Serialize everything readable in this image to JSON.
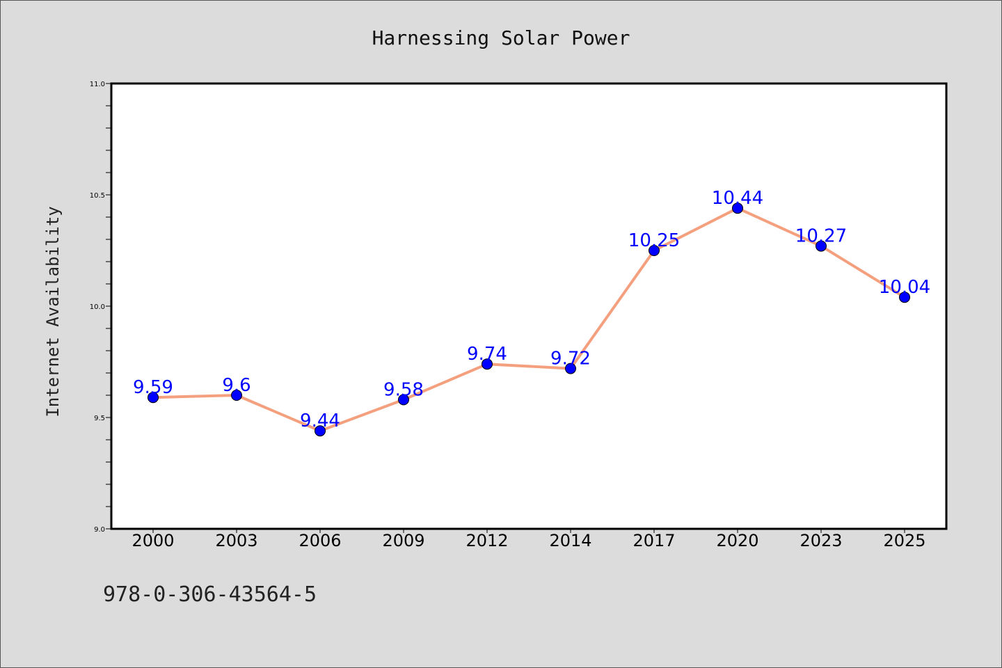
{
  "chart_data": {
    "type": "line",
    "title": "Harnessing Solar Power",
    "xlabel": "",
    "ylabel": "Internet Availability",
    "categories": [
      "2000",
      "2003",
      "2006",
      "2009",
      "2012",
      "2014",
      "2017",
      "2020",
      "2023",
      "2025"
    ],
    "series": [
      {
        "values": [
          9.59,
          9.6,
          9.44,
          9.58,
          9.74,
          9.72,
          10.25,
          10.44,
          10.27,
          10.04
        ],
        "line_color": "#f4a07e",
        "marker_color": "#0000ff"
      }
    ],
    "ylim": [
      9.0,
      11.0
    ],
    "yticks": [
      "9.0",
      "9.5",
      "10.0",
      "10.5",
      "11.0"
    ],
    "data_labels": [
      "9.59",
      "9.6",
      "9.44",
      "9.58",
      "9.74",
      "9.72",
      "10.25",
      "10.44",
      "10.27",
      "10.04"
    ],
    "grid": false,
    "legend": "none"
  },
  "footer_text": "978-0-306-43564-5",
  "colors": {
    "background": "#dcdcdc",
    "plot_background": "#ffffff",
    "line": "#f4a07e",
    "marker": "#0000ff",
    "label": "#0000ff"
  }
}
